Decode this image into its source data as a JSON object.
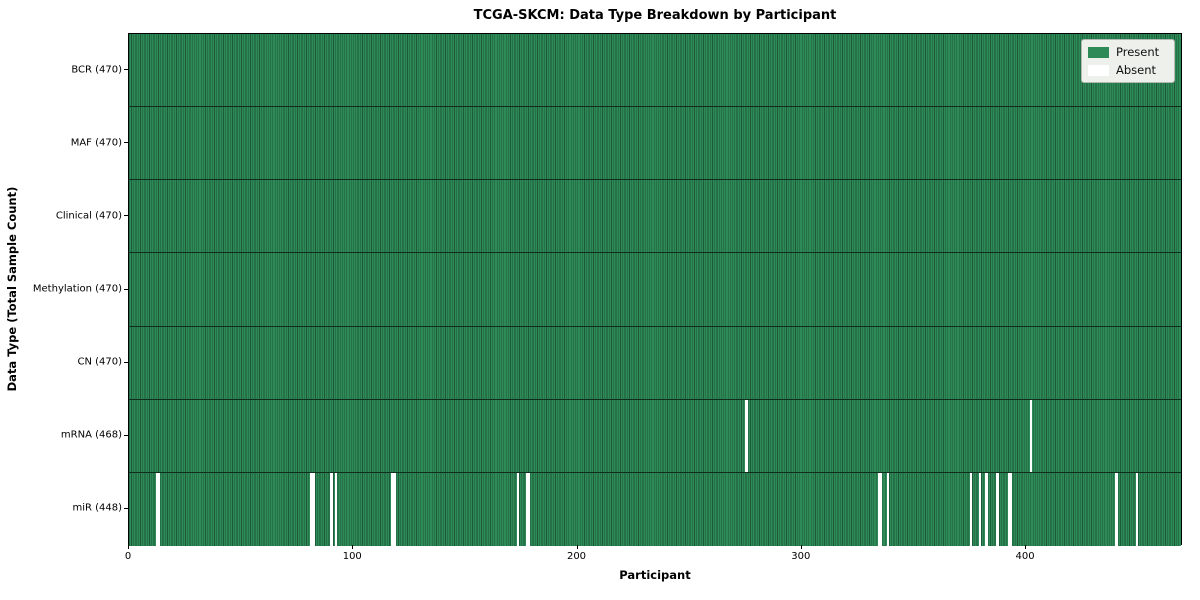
{
  "chart_data": {
    "type": "heatmap",
    "title": "TCGA-SKCM: Data Type Breakdown by Participant",
    "xlabel": "Participant",
    "ylabel": "Data Type (Total Sample Count)",
    "x_range": [
      0,
      470
    ],
    "x_ticks": [
      0,
      100,
      200,
      300,
      400
    ],
    "grid": false,
    "legend_position": "upper right",
    "colors": {
      "present": "#2e8b57",
      "present_edge": "#1e5a3a",
      "absent": "#ffffff"
    },
    "legend": [
      {
        "label": "Present",
        "color_key": "present"
      },
      {
        "label": "Absent",
        "color_key": "absent"
      }
    ],
    "rows": [
      {
        "label": "BCR (470)",
        "data_type": "BCR",
        "total": 470,
        "absent_participants": []
      },
      {
        "label": "MAF (470)",
        "data_type": "MAF",
        "total": 470,
        "absent_participants": []
      },
      {
        "label": "Clinical (470)",
        "data_type": "Clinical",
        "total": 470,
        "absent_participants": []
      },
      {
        "label": "Methylation (470)",
        "data_type": "Methylation",
        "total": 470,
        "absent_participants": []
      },
      {
        "label": "CN (470)",
        "data_type": "CN",
        "total": 470,
        "absent_participants": []
      },
      {
        "label": "mRNA (468)",
        "data_type": "mRNA",
        "total": 468,
        "absent_participants": [
          275,
          402
        ]
      },
      {
        "label": "miR (448)",
        "data_type": "miR",
        "total": 448,
        "absent_participants": [
          12,
          13,
          81,
          82,
          90,
          92,
          117,
          118,
          173,
          177,
          178,
          334,
          335,
          338,
          375,
          379,
          382,
          387,
          392,
          393,
          440,
          449
        ]
      }
    ]
  }
}
